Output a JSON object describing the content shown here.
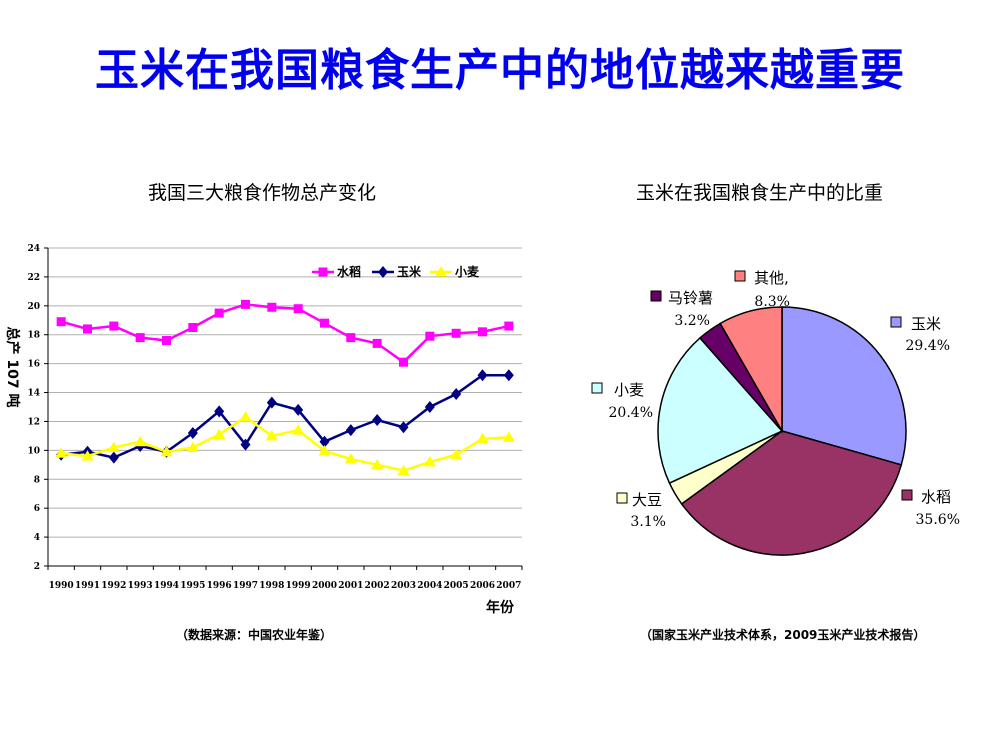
{
  "title": "玉米在我国粮食生产中的地位越来越重要",
  "line_subtitle": "我国三大粮食作物总产变化",
  "pie_subtitle": "玉米在我国粮食生产中的比重",
  "line_source": "（数据来源：中国农业年鉴）",
  "pie_source": "（国家玉米产业技术体系，2009玉米产业技术报告）",
  "chart_data": [
    {
      "type": "line",
      "xlabel": "年份",
      "ylabel": "总产 107 吨",
      "x": [
        "1990",
        "1991",
        "1992",
        "1993",
        "1994",
        "1995",
        "1996",
        "1997",
        "1998",
        "1999",
        "2000",
        "2001",
        "2002",
        "2003",
        "2004",
        "2005",
        "2006",
        "2007"
      ],
      "ylim": [
        2,
        24
      ],
      "yticks": [
        2,
        4,
        6,
        8,
        10,
        12,
        14,
        16,
        18,
        20,
        22,
        24
      ],
      "grid": true,
      "legend_position": "top-right",
      "series": [
        {
          "name": "水稻",
          "color": "#ff00ff",
          "marker": "square",
          "values": [
            18.9,
            18.4,
            18.6,
            17.8,
            17.6,
            18.5,
            19.5,
            20.1,
            19.9,
            19.8,
            18.8,
            17.8,
            17.4,
            16.1,
            17.9,
            18.1,
            18.2,
            18.6
          ]
        },
        {
          "name": "玉米",
          "color": "#000080",
          "marker": "diamond",
          "values": [
            9.7,
            9.9,
            9.5,
            10.3,
            9.9,
            11.2,
            12.7,
            10.4,
            13.3,
            12.8,
            10.6,
            11.4,
            12.1,
            11.6,
            13.0,
            13.9,
            15.2,
            15.2
          ]
        },
        {
          "name": "小麦",
          "color": "#ffff00",
          "marker": "triangle",
          "values": [
            9.8,
            9.6,
            10.2,
            10.6,
            9.9,
            10.2,
            11.1,
            12.3,
            11.0,
            11.4,
            9.96,
            9.4,
            9.0,
            8.6,
            9.2,
            9.7,
            10.8,
            10.9
          ]
        }
      ]
    },
    {
      "type": "pie",
      "slices": [
        {
          "name": "玉米",
          "value": 29.4,
          "pct_label": "29.4%",
          "color": "#9999ff"
        },
        {
          "name": "水稻",
          "value": 35.6,
          "pct_label": "35.6%",
          "color": "#993366"
        },
        {
          "name": "大豆",
          "value": 3.1,
          "pct_label": "3.1%",
          "color": "#ffffcc"
        },
        {
          "name": "小麦",
          "value": 20.4,
          "pct_label": "20.4%",
          "color": "#ccffff"
        },
        {
          "name": "马铃薯",
          "value": 3.2,
          "pct_label": "3.2%",
          "color": "#660066"
        },
        {
          "name": "其他,",
          "value": 8.3,
          "pct_label": "8.3%",
          "color": "#ff8080"
        }
      ]
    }
  ]
}
